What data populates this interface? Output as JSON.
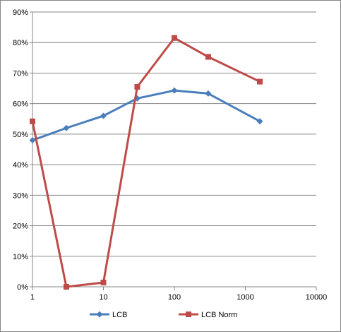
{
  "chart_data": {
    "type": "line",
    "title": "",
    "xlabel": "",
    "ylabel": "",
    "x_scale": "log",
    "xlim": [
      1,
      10000
    ],
    "ylim": [
      0,
      0.9
    ],
    "x_ticks": [
      1,
      10,
      100,
      1000,
      10000
    ],
    "x_tick_labels": [
      "1",
      "10",
      "100",
      "1000",
      "10000"
    ],
    "y_ticks": [
      0,
      0.1,
      0.2,
      0.3,
      0.4,
      0.5,
      0.6,
      0.7,
      0.8,
      0.9
    ],
    "y_tick_labels": [
      "0%",
      "10%",
      "20%",
      "30%",
      "40%",
      "50%",
      "60%",
      "70%",
      "80%",
      "90%"
    ],
    "grid": "horizontal",
    "legend_position": "bottom",
    "series": [
      {
        "name": "LCB",
        "color": "#4A7EBB",
        "marker": "diamond",
        "x": [
          1,
          3,
          10,
          30,
          100,
          300,
          1600
        ],
        "y": [
          0.48,
          0.52,
          0.56,
          0.617,
          0.643,
          0.633,
          0.542
        ]
      },
      {
        "name": "LCB Norm",
        "color": "#BE4B48",
        "marker": "square",
        "x": [
          1,
          3,
          10,
          30,
          100,
          300,
          1600
        ],
        "y": [
          0.542,
          0.0,
          0.014,
          0.655,
          0.815,
          0.753,
          0.672
        ]
      }
    ]
  }
}
